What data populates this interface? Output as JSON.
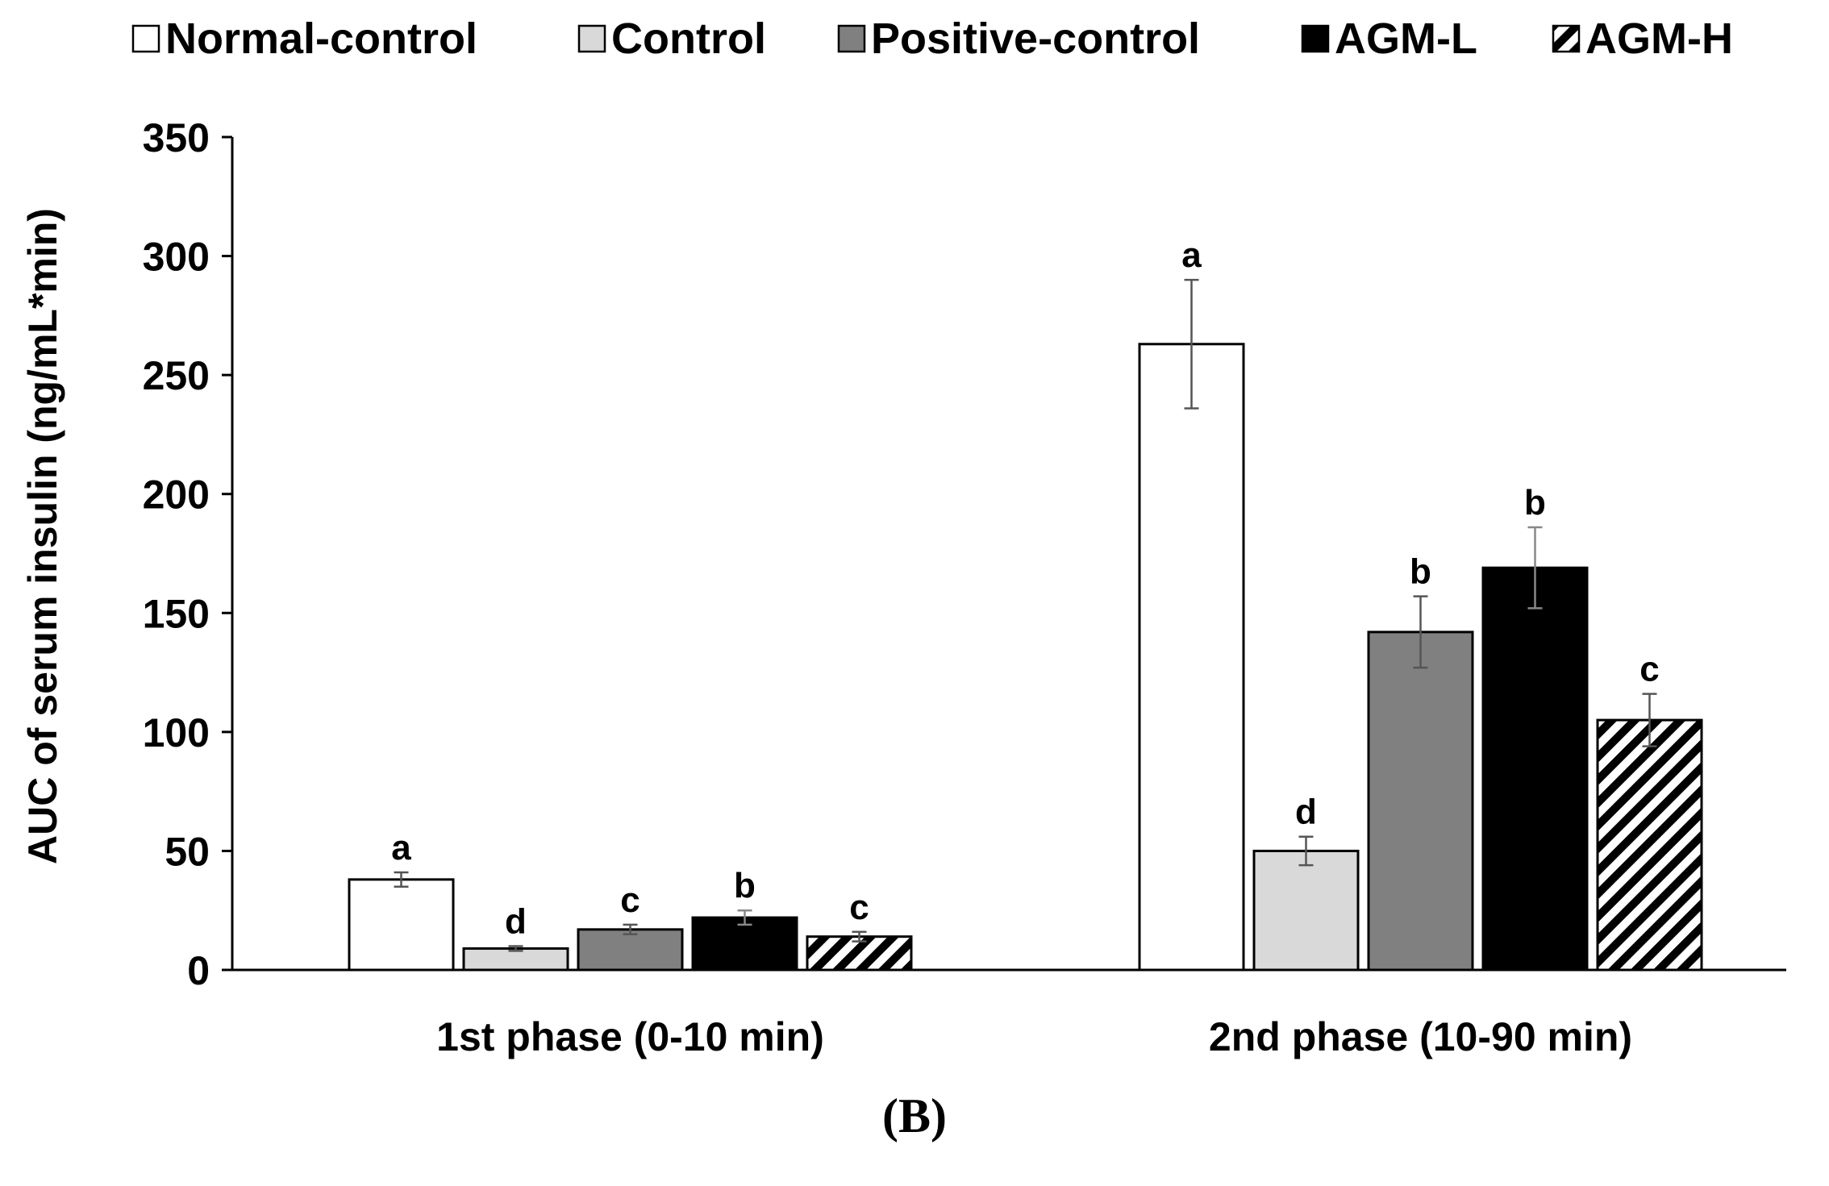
{
  "panel_label": "(B)",
  "chart_data": {
    "type": "bar",
    "title": "",
    "xlabel": "",
    "ylabel": "AUC of serum insulin (ng/mL*min)",
    "ylim": [
      0,
      350
    ],
    "yticks": [
      0,
      50,
      100,
      150,
      200,
      250,
      300,
      350
    ],
    "grid": false,
    "legend_position": "top",
    "categories": [
      "1st phase (0-10 min)",
      "2nd phase (10-90 min)"
    ],
    "series": [
      {
        "name": "Normal-control",
        "fill": "white",
        "color": "#ffffff",
        "values": [
          38,
          263
        ],
        "errors": [
          3,
          27
        ],
        "labels": [
          "a",
          "a"
        ]
      },
      {
        "name": "Control",
        "fill": "solid",
        "color": "#d9d9d9",
        "values": [
          9,
          50
        ],
        "errors": [
          1,
          6
        ],
        "labels": [
          "d",
          "d"
        ]
      },
      {
        "name": "Positive-control",
        "fill": "solid",
        "color": "#808080",
        "values": [
          17,
          142
        ],
        "errors": [
          2,
          15
        ],
        "labels": [
          "c",
          "b"
        ]
      },
      {
        "name": "AGM-L",
        "fill": "solid",
        "color": "#000000",
        "values": [
          22,
          169
        ],
        "errors": [
          3,
          17
        ],
        "labels": [
          "b",
          "b"
        ]
      },
      {
        "name": "AGM-H",
        "fill": "hatch",
        "color": "#000000",
        "values": [
          14,
          105
        ],
        "errors": [
          2,
          11
        ],
        "labels": [
          "c",
          "c"
        ]
      }
    ]
  }
}
